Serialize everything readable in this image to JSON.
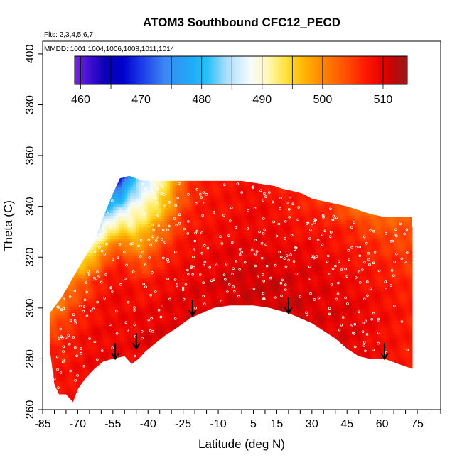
{
  "chart_data": {
    "type": "heatmap",
    "title": "ATOM3 Southbound CFC12_PECD",
    "flights_note": "Flts: 2,3,4,5,6,7",
    "dates_note": "MMDD: 1001,1004,1006,1008,1011,1014",
    "xlabel": "Latitude (deg N)",
    "ylabel": "Theta (C)",
    "xlim": [
      -85,
      85
    ],
    "ylim": [
      260,
      405
    ],
    "x_tick_labels": [
      "-85",
      "-70",
      "-55",
      "-40",
      "-25",
      "-10",
      "5",
      "15",
      "30",
      "45",
      "60",
      "75"
    ],
    "x_tick_values": [
      -85,
      -70,
      -55,
      -40,
      -25,
      -10,
      5,
      15,
      30,
      45,
      60,
      75
    ],
    "x_minor_step": 5,
    "y_tick_labels": [
      "260",
      "280",
      "300",
      "320",
      "340",
      "360",
      "380",
      "400"
    ],
    "y_tick_values": [
      260,
      280,
      300,
      320,
      340,
      360,
      380,
      400
    ],
    "colorbar": {
      "range": [
        459,
        514
      ],
      "tick_labels": [
        "460",
        "470",
        "480",
        "490",
        "500",
        "510"
      ],
      "tick_values": [
        460,
        470,
        480,
        490,
        500,
        510
      ],
      "stops": [
        {
          "value": 459,
          "color": "#7a22e6"
        },
        {
          "value": 461,
          "color": "#4a12d8"
        },
        {
          "value": 464,
          "color": "#0c00b4"
        },
        {
          "value": 467,
          "color": "#0000cc"
        },
        {
          "value": 470,
          "color": "#1a3ae8"
        },
        {
          "value": 474,
          "color": "#3d88f2"
        },
        {
          "value": 478,
          "color": "#1fa8f6"
        },
        {
          "value": 481,
          "color": "#28c0f6"
        },
        {
          "value": 484,
          "color": "#a8dcfb"
        },
        {
          "value": 488,
          "color": "#f5fbff"
        },
        {
          "value": 491,
          "color": "#fff7b4"
        },
        {
          "value": 494,
          "color": "#ffe13a"
        },
        {
          "value": 497,
          "color": "#ffb400"
        },
        {
          "value": 500,
          "color": "#ff8500"
        },
        {
          "value": 504,
          "color": "#ff4d00"
        },
        {
          "value": 507,
          "color": "#ff1a00"
        },
        {
          "value": 510,
          "color": "#e60000"
        },
        {
          "value": 512,
          "color": "#b80a0a"
        },
        {
          "value": 514,
          "color": "#9a1a1a"
        }
      ]
    },
    "field": {
      "lower_boundary": [
        [
          -82,
          284
        ],
        [
          -80,
          270
        ],
        [
          -78,
          266
        ],
        [
          -75,
          266
        ],
        [
          -72,
          263
        ],
        [
          -70,
          268
        ],
        [
          -67,
          272
        ],
        [
          -63,
          276
        ],
        [
          -59,
          279
        ],
        [
          -55,
          280
        ],
        [
          -50,
          281
        ],
        [
          -47,
          278
        ],
        [
          -44,
          280
        ],
        [
          -41,
          283
        ],
        [
          -37,
          286
        ],
        [
          -33,
          289
        ],
        [
          -28,
          292
        ],
        [
          -22,
          296
        ],
        [
          -17,
          298
        ],
        [
          -12,
          300
        ],
        [
          -5,
          301
        ],
        [
          5,
          301
        ],
        [
          12,
          300
        ],
        [
          20,
          298
        ],
        [
          25,
          296
        ],
        [
          30,
          294
        ],
        [
          35,
          291
        ],
        [
          40,
          288
        ],
        [
          45,
          284
        ],
        [
          50,
          281
        ],
        [
          55,
          280
        ],
        [
          61,
          280
        ],
        [
          67,
          278
        ],
        [
          73,
          276
        ]
      ],
      "upper_boundary": [
        [
          -82,
          298
        ],
        [
          -77,
          304
        ],
        [
          -72,
          312
        ],
        [
          -67,
          320
        ],
        [
          -63,
          326
        ],
        [
          -59,
          336
        ],
        [
          -55,
          345
        ],
        [
          -52,
          351
        ],
        [
          -48,
          352
        ],
        [
          -42,
          350
        ],
        [
          -35,
          350
        ],
        [
          -20,
          350
        ],
        [
          0,
          350
        ],
        [
          14,
          348
        ],
        [
          17,
          347
        ],
        [
          22,
          346
        ],
        [
          26,
          345
        ],
        [
          30,
          343
        ],
        [
          40,
          341
        ],
        [
          45,
          340
        ],
        [
          55,
          337
        ],
        [
          60,
          336
        ],
        [
          67,
          336
        ],
        [
          73,
          336
        ],
        [
          73,
          330
        ]
      ],
      "value_grid": {
        "lats": [
          -82,
          -77,
          -72,
          -67,
          -62,
          -57,
          -52,
          -47,
          -42,
          -37,
          -32,
          -27,
          -22,
          -15,
          -5,
          5,
          15,
          25,
          35,
          45,
          55,
          65,
          73
        ],
        "thetas": [
          262,
          275,
          290,
          300,
          310,
          320,
          330,
          340,
          352
        ],
        "values": [
          [
            508,
            508,
            505,
            500,
            499,
            499,
            499,
            499,
            499
          ],
          [
            508,
            508,
            506,
            502,
            500,
            496,
            496,
            496,
            496
          ],
          [
            508,
            508,
            507,
            505,
            501,
            494,
            486,
            486,
            486
          ],
          [
            509,
            509,
            508,
            507,
            503,
            493,
            484,
            480,
            480
          ],
          [
            509,
            509,
            509,
            508,
            506,
            498,
            486,
            477,
            472
          ],
          [
            509,
            509,
            509,
            509,
            508,
            504,
            492,
            480,
            470
          ],
          [
            509,
            509,
            509,
            509,
            509,
            506,
            496,
            483,
            466
          ],
          [
            509,
            509,
            509,
            509,
            508,
            503,
            494,
            488,
            478
          ],
          [
            510,
            510,
            510,
            509,
            507,
            502,
            496,
            490,
            484
          ],
          [
            510,
            510,
            510,
            509,
            508,
            505,
            500,
            493,
            488
          ],
          [
            510,
            510,
            510,
            510,
            509,
            507,
            503,
            497,
            494
          ],
          [
            510,
            510,
            510,
            510,
            509,
            508,
            506,
            503,
            500
          ],
          [
            510,
            510,
            510,
            510,
            510,
            509,
            508,
            506,
            505
          ],
          [
            510,
            510,
            510,
            510,
            510,
            509,
            508,
            508,
            507
          ],
          [
            510,
            510,
            510,
            510,
            511,
            510,
            509,
            508,
            508
          ],
          [
            510,
            510,
            510,
            511,
            511,
            510,
            509,
            509,
            508
          ],
          [
            510,
            510,
            510,
            511,
            511,
            510,
            509,
            508,
            507
          ],
          [
            510,
            510,
            510,
            511,
            510,
            510,
            508,
            507,
            506
          ],
          [
            510,
            510,
            510,
            510,
            510,
            509,
            508,
            506,
            505
          ],
          [
            510,
            510,
            510,
            510,
            509,
            508,
            507,
            503,
            502
          ],
          [
            509,
            509,
            509,
            509,
            508,
            507,
            505,
            500,
            498
          ],
          [
            508,
            508,
            508,
            508,
            507,
            506,
            504,
            501,
            500
          ],
          [
            507,
            507,
            507,
            507,
            506,
            505,
            504,
            503,
            502
          ]
        ]
      }
    },
    "arrows": [
      {
        "lat": -54,
        "theta": 280
      },
      {
        "lat": -45,
        "theta": 284
      },
      {
        "lat": -21,
        "theta": 297
      },
      {
        "lat": 20,
        "theta": 298
      },
      {
        "lat": 61,
        "theta": 280
      }
    ],
    "sample_points": {
      "count": 420,
      "seed": 20241
    }
  }
}
